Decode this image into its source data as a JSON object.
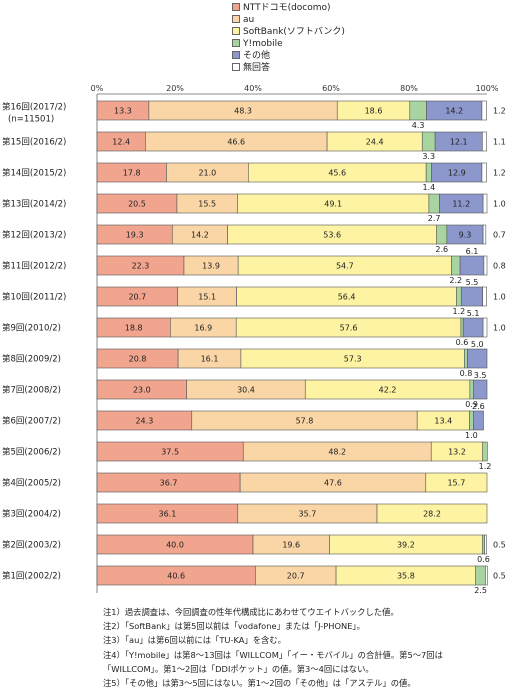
{
  "colors": {
    "NTTドコモ(docomo)": "#f2a58e",
    "au": "#fad6a6",
    "SoftBank(ソフトバンク)": "#fdf3a2",
    "Y!mobile": "#a7d4a0",
    "その他": "#8c97cb",
    "無回答": "#ffffff"
  },
  "chart_data": {
    "type": "bar",
    "orientation": "horizontal",
    "stacked": true,
    "xlim": [
      0,
      100
    ],
    "x_ticks": [
      "0%",
      "20%",
      "40%",
      "60%",
      "80%",
      "100%"
    ],
    "categories": [
      "第16回(2017/2)|(n=11501)",
      "第15回(2016/2)",
      "第14回(2015/2)",
      "第13回(2014/2)",
      "第12回(2013/2)",
      "第11回(2012/2)",
      "第10回(2011/2)",
      "第9回(2010/2)",
      "第8回(2009/2)",
      "第7回(2008/2)",
      "第6回(2007/2)",
      "第5回(2006/2)",
      "第4回(2005/2)",
      "第3回(2004/2)",
      "第2回(2003/2)",
      "第1回(2002/2)"
    ],
    "series": [
      {
        "name": "NTTドコモ(docomo)",
        "values": [
          13.3,
          12.4,
          17.8,
          20.5,
          19.3,
          22.3,
          20.7,
          18.8,
          20.8,
          23.0,
          24.3,
          37.5,
          36.7,
          36.1,
          40.0,
          40.6
        ]
      },
      {
        "name": "au",
        "values": [
          48.3,
          46.6,
          21.0,
          15.5,
          14.2,
          13.9,
          15.1,
          16.9,
          16.1,
          30.4,
          57.8,
          48.2,
          47.6,
          35.7,
          19.6,
          20.7
        ]
      },
      {
        "name": "SoftBank(ソフトバンク)",
        "values": [
          18.6,
          24.4,
          45.6,
          49.1,
          53.6,
          54.7,
          56.4,
          57.6,
          57.3,
          42.2,
          13.4,
          13.2,
          15.7,
          28.2,
          39.2,
          35.8
        ]
      },
      {
        "name": "Y!mobile",
        "values": [
          4.3,
          3.3,
          1.4,
          2.7,
          2.6,
          2.2,
          1.2,
          0.6,
          0.8,
          0.9,
          1.0,
          1.2,
          0,
          0,
          0.6,
          2.5
        ]
      },
      {
        "name": "その他",
        "values": [
          14.2,
          12.1,
          12.9,
          11.2,
          9.3,
          6.1,
          5.5,
          5.1,
          5.0,
          3.5,
          2.6,
          0,
          0,
          0,
          0,
          0
        ]
      },
      {
        "name": "無回答",
        "values": [
          1.2,
          1.1,
          1.2,
          1.0,
          0.7,
          0.8,
          1.0,
          1.0,
          0,
          0,
          0,
          0,
          0,
          0,
          0.5,
          0.5
        ]
      }
    ],
    "segment_labels": [
      [
        "13.3",
        "48.3",
        "18.6",
        "4.3",
        "14.2",
        "1.2"
      ],
      [
        "12.4",
        "46.6",
        "24.4",
        "3.3",
        "12.1",
        "1.1"
      ],
      [
        "17.8",
        "21.0",
        "45.6",
        "1.4",
        "12.9",
        "1.2"
      ],
      [
        "20.5",
        "15.5",
        "49.1",
        "2.7",
        "11.2",
        "1.0"
      ],
      [
        "19.3",
        "14.2",
        "53.6",
        "2.6",
        "9.3",
        "0.7"
      ],
      [
        "22.3",
        "13.9",
        "54.7",
        "2.2",
        "6.1",
        "0.8"
      ],
      [
        "20.7",
        "15.1",
        "56.4",
        "1.2",
        "5.5",
        "1.0"
      ],
      [
        "18.8",
        "16.9",
        "57.6",
        "0.6",
        "5.1",
        "1.0"
      ],
      [
        "20.8",
        "16.1",
        "57.3",
        "0.8",
        "5.0",
        ""
      ],
      [
        "23.0",
        "30.4",
        "42.2",
        "0.9",
        "3.5",
        ""
      ],
      [
        "24.3",
        "57.8",
        "13.4",
        "1.0",
        "2.6",
        ""
      ],
      [
        "37.5",
        "48.2",
        "13.2",
        "1.2",
        "",
        ""
      ],
      [
        "36.7",
        "47.6",
        "15.7",
        "",
        "",
        ""
      ],
      [
        "36.1",
        "35.7",
        "28.2",
        "",
        "",
        ""
      ],
      [
        "40.0",
        "19.6",
        "39.2",
        "0.6",
        "",
        "0.5"
      ],
      [
        "40.6",
        "20.7",
        "35.8",
        "2.5",
        "",
        "0.5"
      ]
    ],
    "label_placement": [
      [
        "in",
        "in",
        "in",
        "below",
        "in",
        "right"
      ],
      [
        "in",
        "in",
        "in",
        "below",
        "in",
        "right"
      ],
      [
        "in",
        "in",
        "in",
        "below",
        "in",
        "right"
      ],
      [
        "in",
        "in",
        "in",
        "below",
        "in",
        "right"
      ],
      [
        "in",
        "in",
        "in",
        "below",
        "in",
        "right"
      ],
      [
        "in",
        "in",
        "in",
        "below",
        "above",
        "right"
      ],
      [
        "in",
        "in",
        "in",
        "below",
        "above",
        "right"
      ],
      [
        "in",
        "in",
        "in",
        "below",
        "above",
        "right"
      ],
      [
        "in",
        "in",
        "in",
        "below",
        "above",
        ""
      ],
      [
        "in",
        "in",
        "in",
        "below",
        "above",
        ""
      ],
      [
        "in",
        "in",
        "in",
        "below",
        "above",
        ""
      ],
      [
        "in",
        "in",
        "in",
        "below",
        "",
        ""
      ],
      [
        "in",
        "in",
        "in",
        "",
        "",
        ""
      ],
      [
        "in",
        "in",
        "in",
        "",
        "",
        ""
      ],
      [
        "in",
        "in",
        "in",
        "below",
        "",
        "right"
      ],
      [
        "in",
        "in",
        "in",
        "below",
        "",
        "right"
      ]
    ]
  },
  "notes": [
    "注1）過去調査は、今回調査の性年代構成比にあわせてウエイトバックした値。",
    "注2）「SoftBank」は第5回以前は「vodafone」または「J-PHONE」。",
    "注3）「au」は第6回以前には「TU-KA」を含む。",
    "注4）「Y!mobile」は第8～13回は「WILLCOM」「イー・モバイル」の合計値。第5～7回は",
    "「WILLCOM」。第1～2回は「DDIポケット」の値。第3～4回にはない。",
    "注5）「その他」は第3～5回にはない。第1～2回の「その他」は「アステル」の値。"
  ]
}
